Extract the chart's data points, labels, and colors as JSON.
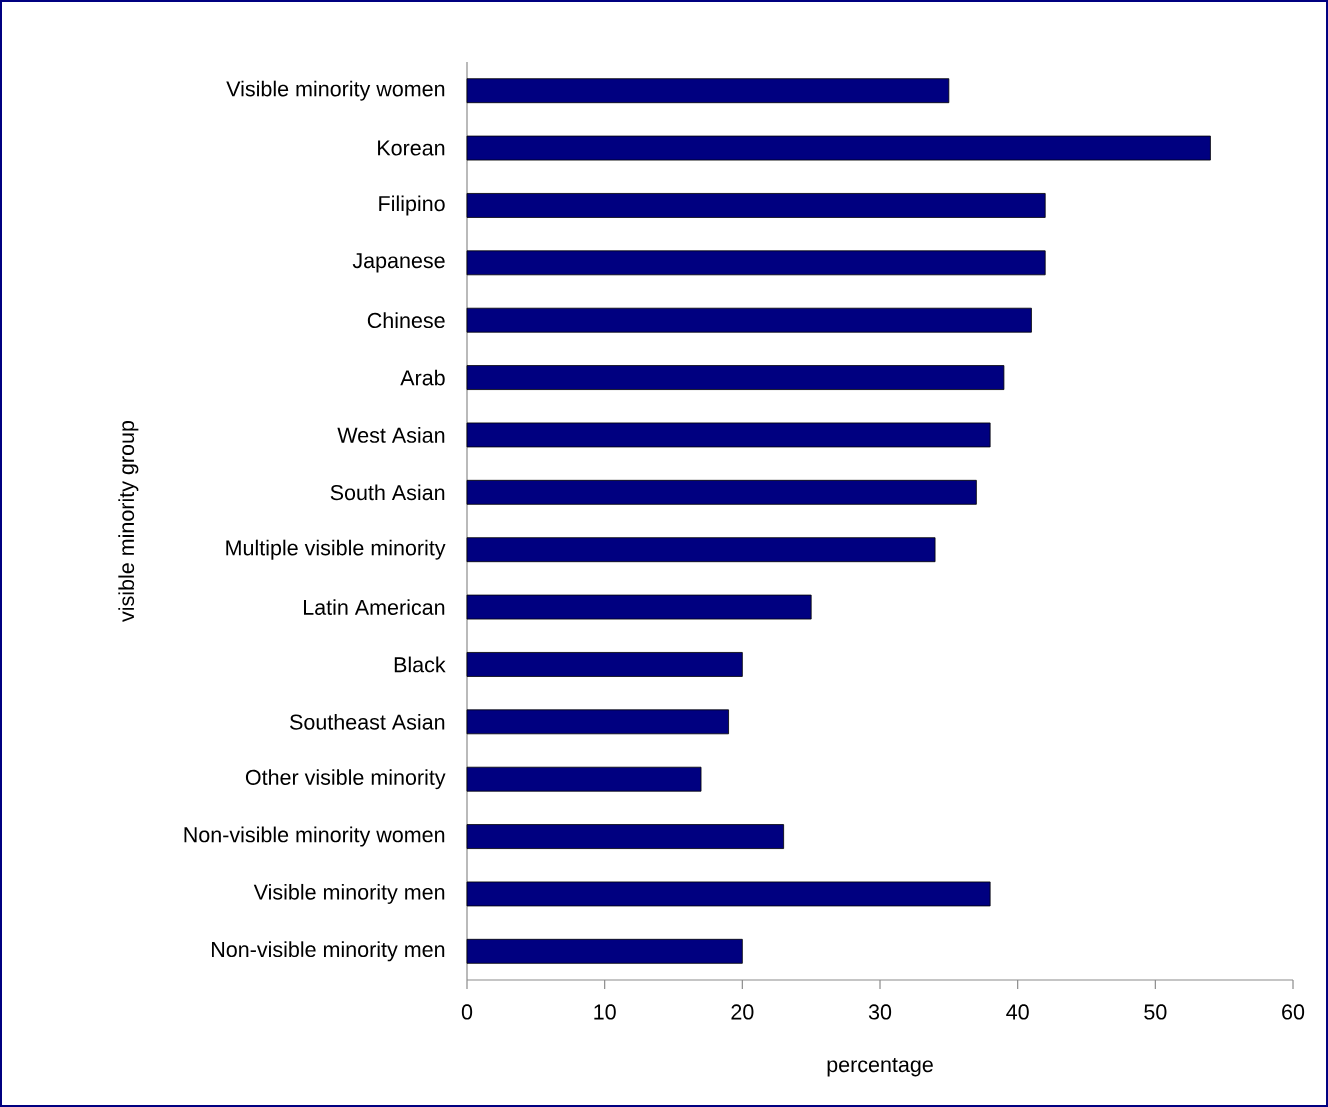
{
  "chart_data": {
    "type": "bar",
    "orientation": "horizontal",
    "xlabel": "percentage",
    "ylabel": "visible minority group",
    "categories": [
      "Visible minority women",
      "Korean",
      "Filipino",
      "Japanese",
      "Chinese",
      "Arab",
      "West Asian",
      "South Asian",
      "Multiple visible minority",
      "Latin American",
      "Black",
      "Southeast Asian",
      "Other visible minority",
      "Non-visible minority women",
      "Visible minority men",
      "Non-visible minority men"
    ],
    "values": [
      35,
      54,
      42,
      42,
      41,
      39,
      38,
      37,
      34,
      25,
      20,
      19,
      17,
      23,
      38,
      20
    ],
    "color": "#000080",
    "xlim": [
      0,
      60
    ],
    "xticks": [
      0,
      10,
      20,
      30,
      40,
      50,
      60
    ]
  }
}
